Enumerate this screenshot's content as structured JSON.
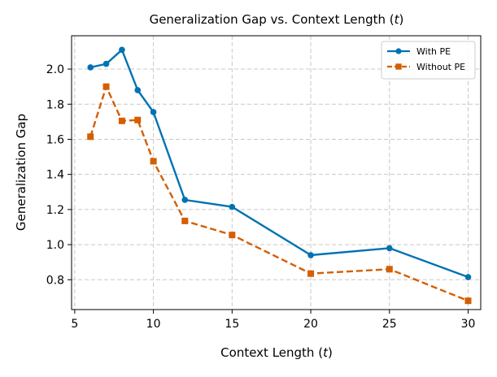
{
  "chart_data": {
    "type": "line",
    "title": "Generalization Gap vs. Context Length (",
    "title_var": "t",
    "title_end": ")",
    "xlabel": "Context Length (",
    "xlabel_var": "t",
    "xlabel_end": ")",
    "ylabel": "Generalization Gap",
    "xlim": [
      4.8,
      30.8
    ],
    "ylim": [
      0.63,
      2.19
    ],
    "xticks": [
      5,
      10,
      15,
      20,
      25,
      30
    ],
    "xtick_labels": [
      "5",
      "10",
      "15",
      "20",
      "25",
      "30"
    ],
    "yticks": [
      0.8,
      1.0,
      1.2,
      1.4,
      1.6,
      1.8,
      2.0
    ],
    "ytick_labels": [
      "0.8",
      "1.0",
      "1.2",
      "1.4",
      "1.6",
      "1.8",
      "2.0"
    ],
    "grid": true,
    "legend_position": "top-right",
    "series": [
      {
        "name": "With PE",
        "color": "#0072b2",
        "marker": "circle",
        "linestyle": "solid",
        "x": [
          6,
          7,
          8,
          9,
          10,
          12,
          15,
          20,
          25,
          30
        ],
        "y": [
          2.01,
          2.03,
          2.11,
          1.88,
          1.755,
          1.255,
          1.215,
          0.94,
          0.98,
          0.815
        ]
      },
      {
        "name": "Without PE",
        "color": "#d55e00",
        "marker": "square",
        "linestyle": "dashed",
        "x": [
          6,
          7,
          8,
          9,
          10,
          12,
          15,
          20,
          25,
          30
        ],
        "y": [
          1.615,
          1.9,
          1.705,
          1.71,
          1.475,
          1.135,
          1.055,
          0.835,
          0.86,
          0.68
        ]
      }
    ]
  }
}
